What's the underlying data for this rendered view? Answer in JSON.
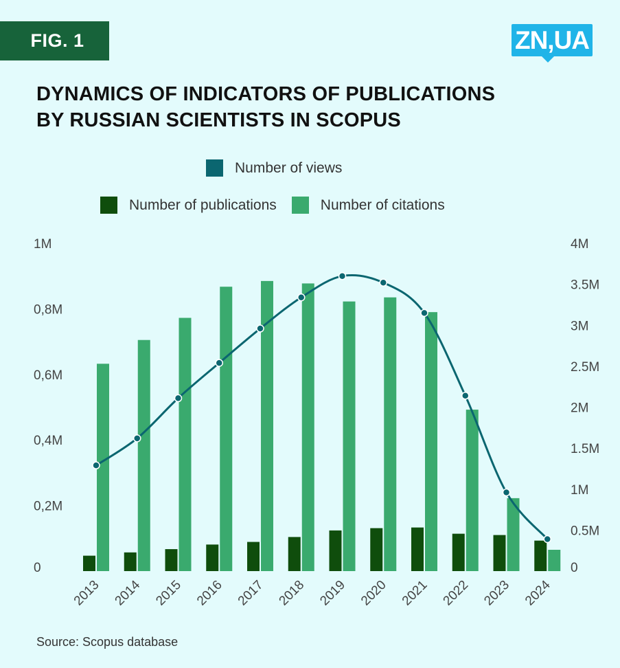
{
  "header": {
    "fig_label": "FIG. 1",
    "logo_text": "ZN,UA",
    "title_line1": "DYNAMICS OF INDICATORS OF PUBLICATIONS",
    "title_line2": "BY RUSSIAN SCIENTISTS IN SCOPUS"
  },
  "legend": {
    "views": "Number of views",
    "publications": "Number of publications",
    "citations": "Number of citations"
  },
  "source": "Source: Scopus database",
  "colors": {
    "background": "#e3fbfc",
    "badge": "#17633a",
    "logo": "#20b4e8",
    "publications": "#0f4d0c",
    "citations": "#3aaa6e",
    "views": "#0b6670"
  },
  "chart_data": {
    "type": "bar",
    "categories": [
      "2013",
      "2014",
      "2015",
      "2016",
      "2017",
      "2018",
      "2019",
      "2020",
      "2021",
      "2022",
      "2023",
      "2024"
    ],
    "left_axis": {
      "ticks": [
        "0",
        "0,2M",
        "0,4M",
        "0,6M",
        "0,8M",
        "1M"
      ],
      "range": [
        0,
        1000000
      ]
    },
    "right_axis": {
      "ticks": [
        "0",
        "0.5M",
        "1M",
        "1.5M",
        "2M",
        "2.5M",
        "3M",
        "3.5M",
        "4M"
      ],
      "range": [
        0,
        4000000
      ]
    },
    "series": [
      {
        "name": "Number of publications",
        "type": "bar",
        "axis": "left",
        "values": [
          47000,
          57000,
          67000,
          81000,
          89000,
          104000,
          124000,
          131000,
          133000,
          114000,
          110000,
          93000
        ]
      },
      {
        "name": "Number of citations",
        "type": "bar",
        "axis": "right",
        "values": [
          2530000,
          2820000,
          3090000,
          3470000,
          3540000,
          3510000,
          3290000,
          3340000,
          3160000,
          1970000,
          890000,
          260000
        ]
      },
      {
        "name": "Number of views",
        "type": "line",
        "axis": "right",
        "values": [
          1290000,
          1620000,
          2110000,
          2540000,
          2960000,
          3340000,
          3600000,
          3520000,
          3150000,
          2140000,
          960000,
          390000
        ]
      }
    ],
    "grid": false,
    "legend_position": "top"
  }
}
